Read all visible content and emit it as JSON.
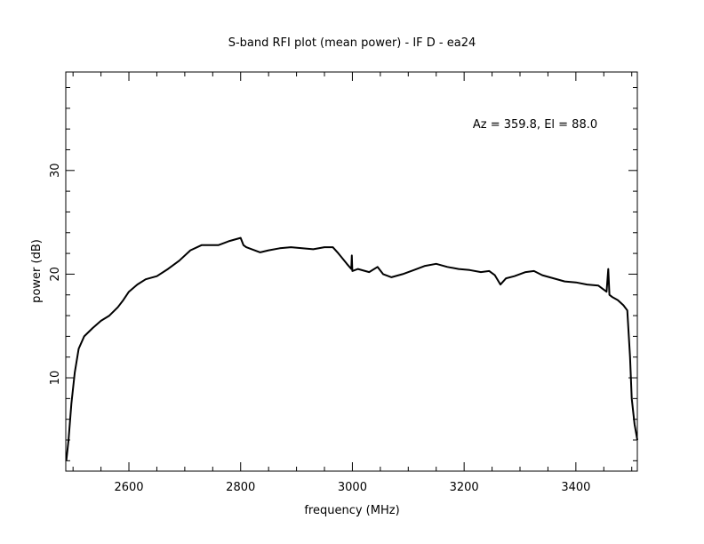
{
  "chart_data": {
    "type": "line",
    "title": "S-band RFI plot (mean power) - IF D - ea24",
    "annotation": "Az = 359.8, El = 88.0",
    "xlabel": "frequency (MHz)",
    "ylabel": "power (dB)",
    "xlim": [
      2487,
      3510
    ],
    "ylim": [
      1,
      39.5
    ],
    "x_ticks": [
      2600,
      2800,
      3000,
      3200,
      3400
    ],
    "x_tick_labels": [
      "2600",
      "2800",
      "3000",
      "3200",
      "3400"
    ],
    "y_ticks": [
      10,
      20,
      30
    ],
    "y_tick_labels": [
      "10",
      "20",
      "30"
    ],
    "grid": false,
    "line_color": "#000000",
    "series": [
      {
        "x": [
          2488,
          2492,
          2497,
          2503,
          2510,
          2520,
          2535,
          2550,
          2565,
          2580,
          2590,
          2600,
          2615,
          2630,
          2650,
          2670,
          2690,
          2710,
          2730,
          2745,
          2760,
          2780,
          2800,
          2805,
          2810,
          2820,
          2835,
          2850,
          2870,
          2890,
          2910,
          2930,
          2950,
          2965,
          2975,
          2990,
          2998,
          2999,
          3000,
          3010,
          3030,
          3045,
          3055,
          3070,
          3090,
          3110,
          3130,
          3150,
          3170,
          3190,
          3210,
          3230,
          3245,
          3255,
          3265,
          3275,
          3290,
          3310,
          3325,
          3340,
          3360,
          3380,
          3400,
          3420,
          3440,
          3455,
          3458,
          3460,
          3465,
          3475,
          3485,
          3492,
          3497,
          3500,
          3505,
          3510
        ],
        "y": [
          2,
          4,
          7.5,
          10.5,
          12.8,
          14,
          14.8,
          15.5,
          16,
          16.8,
          17.5,
          18.3,
          19,
          19.5,
          19.8,
          20.5,
          21.3,
          22.3,
          22.8,
          22.8,
          22.8,
          23.2,
          23.5,
          22.8,
          22.6,
          22.4,
          22.1,
          22.3,
          22.5,
          22.6,
          22.5,
          22.4,
          22.6,
          22.6,
          22.0,
          21.0,
          20.5,
          21.8,
          20.3,
          20.5,
          20.2,
          20.7,
          20.0,
          19.7,
          20.0,
          20.4,
          20.8,
          21.0,
          20.7,
          20.5,
          20.4,
          20.2,
          20.3,
          19.9,
          19.0,
          19.6,
          19.8,
          20.2,
          20.3,
          19.9,
          19.6,
          19.3,
          19.2,
          19.0,
          18.9,
          18.3,
          20.5,
          18.0,
          17.8,
          17.5,
          17.0,
          16.5,
          12.0,
          8.0,
          5.5,
          4.0
        ]
      }
    ]
  }
}
